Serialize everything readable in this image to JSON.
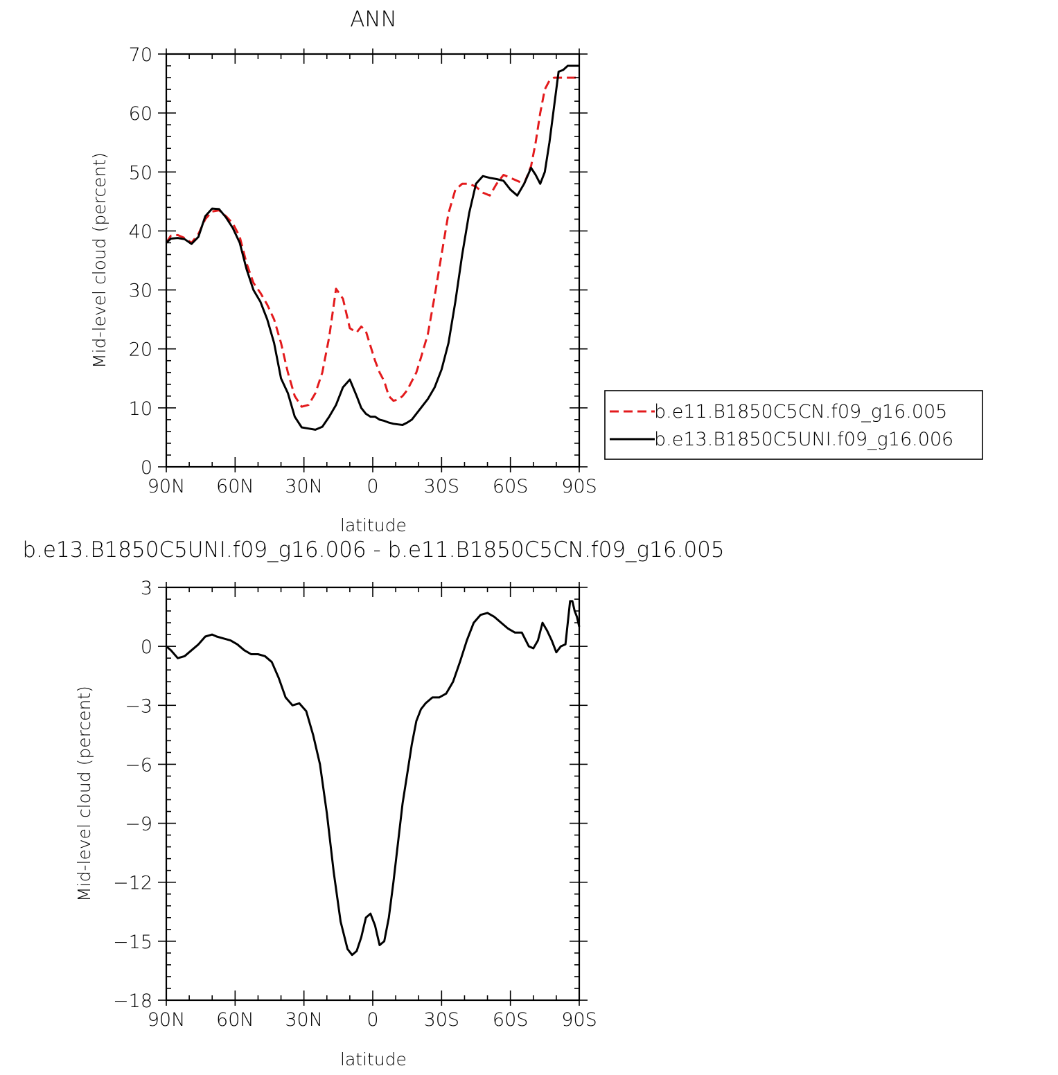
{
  "chart_data": [
    {
      "type": "line",
      "title": "ANN",
      "xlabel": "latitude",
      "ylabel": "Mid-level cloud (percent)",
      "xlim": [
        90,
        -90
      ],
      "ylim": [
        0,
        70
      ],
      "xtick_values": [
        90,
        60,
        30,
        0,
        -30,
        -60,
        -90
      ],
      "xtick_labels": [
        "90N",
        "60N",
        "30N",
        "0",
        "30S",
        "60S",
        "90S"
      ],
      "ytick_values": [
        0,
        10,
        20,
        30,
        40,
        50,
        60,
        70
      ],
      "ytick_labels": [
        "0",
        "10",
        "20",
        "30",
        "40",
        "50",
        "60",
        "70"
      ],
      "grid": false,
      "legend": {
        "placement": "right"
      },
      "series": [
        {
          "name": "b.e11.B1850C5CN.f09_g16.005",
          "color": "#e31a1c",
          "dash": "dashed",
          "x": [
            90,
            88,
            85,
            82,
            79,
            76,
            73,
            70,
            67,
            64,
            61,
            58,
            55,
            52,
            49,
            46,
            43,
            40,
            37,
            34,
            31,
            28,
            25,
            22,
            19,
            16,
            13,
            10,
            7,
            5,
            3,
            1,
            -1,
            -3,
            -5,
            -7,
            -9,
            -11,
            -13,
            -15,
            -17,
            -19,
            -21,
            -24,
            -27,
            -30,
            -33,
            -36,
            -39,
            -42,
            -45,
            -48,
            -51,
            -54,
            -57,
            -60,
            -63,
            -66,
            -69,
            -71,
            -73,
            -75,
            -77,
            -79,
            -81,
            -83,
            -85,
            -87,
            -88,
            -89,
            -90
          ],
          "y": [
            38,
            39.2,
            39.3,
            38.8,
            38.0,
            39.5,
            42.0,
            43.3,
            43.5,
            42.5,
            41.3,
            39.0,
            34.5,
            31.2,
            29.5,
            27.5,
            25.0,
            21.0,
            16.0,
            12.0,
            10.2,
            10.5,
            12.5,
            16.0,
            22.0,
            30.2,
            28.5,
            23.5,
            22.8,
            23.8,
            23.0,
            20.5,
            18.0,
            16.0,
            14.5,
            12.0,
            11.2,
            11.4,
            12.0,
            13.0,
            14.5,
            16.0,
            18.5,
            22.5,
            29.0,
            36.0,
            43.0,
            47.0,
            48.0,
            48.0,
            47.5,
            46.5,
            46.0,
            48.0,
            49.5,
            49.0,
            48.5,
            48.0,
            51.0,
            55.0,
            60.0,
            64.0,
            65.5,
            66.0,
            66.0,
            66.0,
            66.0,
            66.0,
            66.0,
            66.0,
            66.0
          ]
        },
        {
          "name": "b.e13.B1850C5UNI.f09_g16.006",
          "color": "#000000",
          "dash": "solid",
          "x": [
            90,
            88,
            85,
            82,
            79,
            76,
            73,
            70,
            67,
            64,
            61,
            58,
            55,
            52,
            49,
            46,
            43,
            40,
            37,
            34,
            31,
            28,
            25,
            22,
            19,
            16,
            13,
            10,
            7,
            5,
            3,
            1,
            -1,
            -3,
            -5,
            -7,
            -9,
            -11,
            -13,
            -15,
            -17,
            -19,
            -21,
            -24,
            -27,
            -30,
            -33,
            -36,
            -39,
            -42,
            -45,
            -48,
            -51,
            -54,
            -57,
            -60,
            -63,
            -66,
            -69,
            -71,
            -73,
            -75,
            -77,
            -79,
            -81,
            -83,
            -85,
            -87,
            -88,
            -89,
            -90
          ],
          "y": [
            38.0,
            38.7,
            38.8,
            38.6,
            37.8,
            39.0,
            42.5,
            43.8,
            43.7,
            42.3,
            40.5,
            38.0,
            33.5,
            30.0,
            28.0,
            25.0,
            21.0,
            15.0,
            12.5,
            8.5,
            6.7,
            6.5,
            6.3,
            6.8,
            8.5,
            10.5,
            13.5,
            14.8,
            12.0,
            10.0,
            9.0,
            8.5,
            8.5,
            8.0,
            7.8,
            7.5,
            7.3,
            7.2,
            7.1,
            7.5,
            8.0,
            9.0,
            10.0,
            11.5,
            13.5,
            16.5,
            21.0,
            28.0,
            36.0,
            43.0,
            48.0,
            49.3,
            49.0,
            48.8,
            48.5,
            47.0,
            46.0,
            48.0,
            50.7,
            49.5,
            48.0,
            50.0,
            55.0,
            61.0,
            67.0,
            67.3,
            68.0,
            68.0,
            68.0,
            68.0,
            68.0
          ]
        }
      ]
    },
    {
      "type": "line",
      "title": "b.e13.B1850C5UNI.f09_g16.006 - b.e11.B1850C5CN.f09_g16.005",
      "xlabel": "latitude",
      "ylabel": "Mid-level cloud (percent)",
      "xlim": [
        90,
        -90
      ],
      "ylim": [
        -18,
        3
      ],
      "xtick_values": [
        90,
        60,
        30,
        0,
        -30,
        -60,
        -90
      ],
      "xtick_labels": [
        "90N",
        "60N",
        "30N",
        "0",
        "30S",
        "60S",
        "90S"
      ],
      "ytick_values": [
        3,
        0,
        -3,
        -6,
        -9,
        -12,
        -15,
        -18
      ],
      "ytick_labels": [
        "3",
        "0",
        "−3",
        "−6",
        "−9",
        "−12",
        "−15",
        "−18"
      ],
      "grid": false,
      "series": [
        {
          "color": "#000000",
          "dash": "solid",
          "x": [
            90,
            88,
            85,
            82,
            79,
            76,
            73,
            70,
            68,
            65,
            62,
            59,
            56,
            53,
            50,
            47,
            44,
            41,
            38,
            35,
            32,
            29,
            26,
            23,
            20,
            17,
            14,
            11,
            9,
            7,
            5,
            3,
            1,
            -1,
            -3,
            -5,
            -7,
            -9,
            -11,
            -13,
            -15,
            -17,
            -19,
            -21,
            -23,
            -26,
            -29,
            -32,
            -35,
            -38,
            -41,
            -44,
            -47,
            -50,
            -53,
            -56,
            -59,
            -62,
            -65,
            -68,
            -70,
            -72,
            -74,
            -76,
            -78,
            -80,
            -82,
            -84,
            -86,
            -87,
            -88,
            -89,
            -90
          ],
          "y": [
            0.0,
            -0.2,
            -0.6,
            -0.5,
            -0.2,
            0.1,
            0.5,
            0.6,
            0.5,
            0.4,
            0.3,
            0.1,
            -0.2,
            -0.4,
            -0.4,
            -0.5,
            -0.8,
            -1.6,
            -2.6,
            -3.0,
            -2.9,
            -3.3,
            -4.5,
            -6.0,
            -8.5,
            -11.5,
            -14.0,
            -15.4,
            -15.7,
            -15.5,
            -14.8,
            -13.8,
            -13.6,
            -14.2,
            -15.2,
            -15.0,
            -13.8,
            -12.0,
            -10.0,
            -8.0,
            -6.5,
            -5.0,
            -3.8,
            -3.2,
            -2.9,
            -2.6,
            -2.6,
            -2.4,
            -1.8,
            -0.8,
            0.3,
            1.2,
            1.6,
            1.7,
            1.5,
            1.2,
            0.9,
            0.7,
            0.7,
            0.0,
            -0.1,
            0.3,
            1.2,
            0.8,
            0.3,
            -0.3,
            0.0,
            0.1,
            2.3,
            2.3,
            1.8,
            1.5,
            1.0
          ]
        }
      ]
    }
  ]
}
